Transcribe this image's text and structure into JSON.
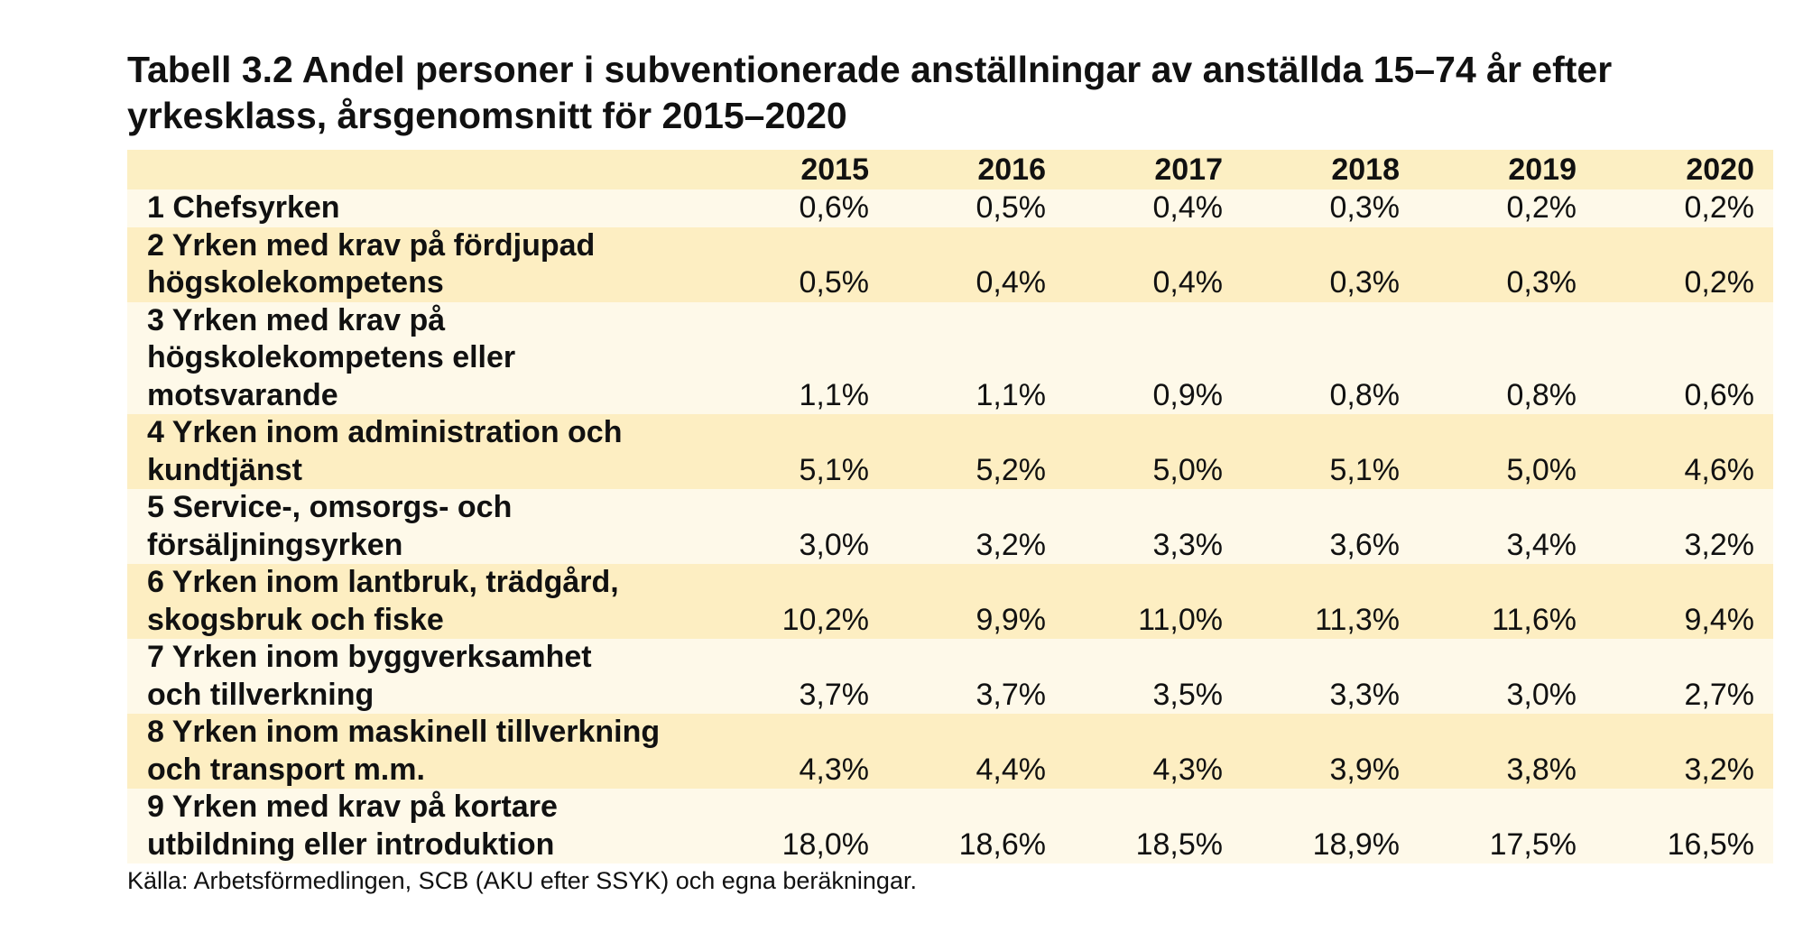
{
  "title_line1": "Tabell 3.2 Andel personer i subventionerade anställningar av anställda 15–74 år efter",
  "title_line2": "yrkesklass, årsgenomsnitt för 2015–2020",
  "columns": [
    "2015",
    "2016",
    "2017",
    "2018",
    "2019",
    "2020"
  ],
  "rows": [
    {
      "label_lines": [
        "1 Chefsyrken"
      ],
      "values": [
        "0,6%",
        "0,5%",
        "0,4%",
        "0,3%",
        "0,2%",
        "0,2%"
      ]
    },
    {
      "label_lines": [
        "2 Yrken med krav på fördjupad",
        "högskolekompetens"
      ],
      "values": [
        "0,5%",
        "0,4%",
        "0,4%",
        "0,3%",
        "0,3%",
        "0,2%"
      ]
    },
    {
      "label_lines": [
        "3 Yrken med krav på",
        "högskolekompetens eller",
        "motsvarande"
      ],
      "values": [
        "1,1%",
        "1,1%",
        "0,9%",
        "0,8%",
        "0,8%",
        "0,6%"
      ]
    },
    {
      "label_lines": [
        "4 Yrken inom administration och",
        "kundtjänst"
      ],
      "values": [
        "5,1%",
        "5,2%",
        "5,0%",
        "5,1%",
        "5,0%",
        "4,6%"
      ]
    },
    {
      "label_lines": [
        "5 Service-, omsorgs- och",
        "försäljningsyrken"
      ],
      "values": [
        "3,0%",
        "3,2%",
        "3,3%",
        "3,6%",
        "3,4%",
        "3,2%"
      ]
    },
    {
      "label_lines": [
        "6 Yrken inom lantbruk, trädgård,",
        "skogsbruk och fiske"
      ],
      "values": [
        "10,2%",
        "9,9%",
        "11,0%",
        "11,3%",
        "11,6%",
        "9,4%"
      ]
    },
    {
      "label_lines": [
        "7 Yrken inom byggverksamhet",
        "och tillverkning"
      ],
      "values": [
        "3,7%",
        "3,7%",
        "3,5%",
        "3,3%",
        "3,0%",
        "2,7%"
      ]
    },
    {
      "label_lines": [
        "8 Yrken inom maskinell tillverkning",
        "och transport m.m."
      ],
      "values": [
        "4,3%",
        "4,4%",
        "4,3%",
        "3,9%",
        "3,8%",
        "3,2%"
      ]
    },
    {
      "label_lines": [
        "9 Yrken med krav på kortare",
        "utbildning eller introduktion"
      ],
      "values": [
        "18,0%",
        "18,6%",
        "18,5%",
        "18,9%",
        "17,5%",
        "16,5%"
      ]
    }
  ],
  "source": "Källa: Arbetsförmedlingen, SCB (AKU efter SSYK) och egna beräkningar.",
  "colors": {
    "header_bg": "#fcefc3",
    "row_light": "#fef9e9",
    "row_dark": "#fdeec2"
  }
}
